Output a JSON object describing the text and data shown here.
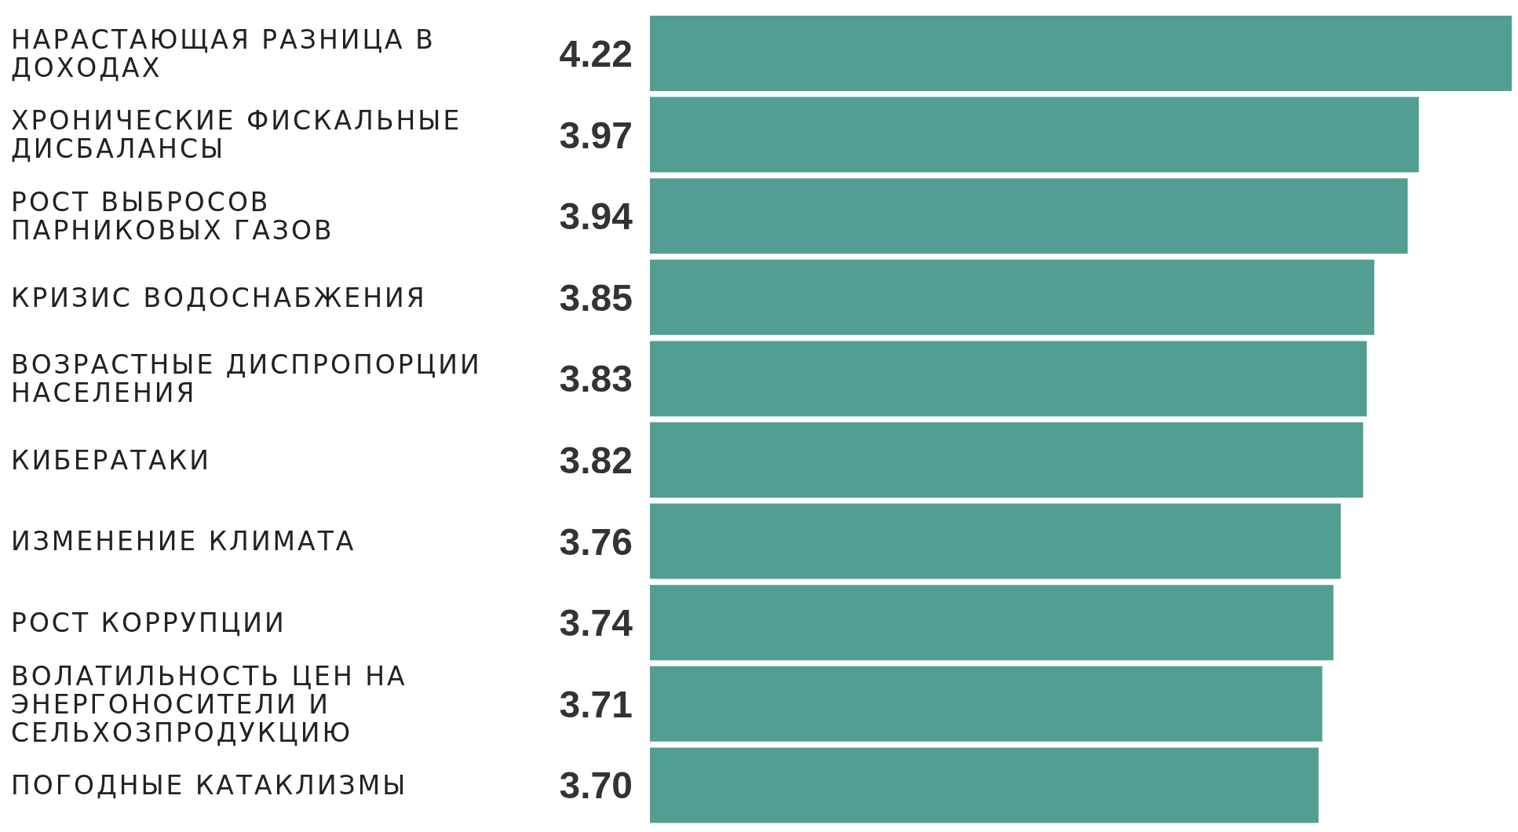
{
  "chart_data": {
    "type": "bar",
    "orientation": "horizontal",
    "categories": [
      "НАРАСТАЮЩАЯ РАЗНИЦА В ДОХОДАХ",
      "ХРОНИЧЕСКИЕ ФИСКАЛЬНЫЕ ДИСБАЛАНСЫ",
      "РОСТ ВЫБРОСОВ ПАРНИКОВЫХ ГАЗОВ",
      "КРИЗИС ВОДОСНАБЖЕНИЯ",
      "ВОЗРАСТНЫЕ ДИСПРОПОРЦИИ НАСЕЛЕНИЯ",
      "КИБЕРАТАКИ",
      "ИЗМЕНЕНИЕ КЛИМАТА",
      "РОСТ КОРРУПЦИИ",
      "ВОЛАТИЛЬНОСТЬ ЦЕН НА ЭНЕРГОНОСИТЕЛИ И СЕЛЬХОЗПРОДУКЦИЮ",
      "ПОГОДНЫЕ КАТАКЛИЗМЫ"
    ],
    "values": [
      4.22,
      3.97,
      3.94,
      3.85,
      3.83,
      3.82,
      3.76,
      3.74,
      3.71,
      3.7
    ],
    "value_labels": [
      "4.22",
      "3.97",
      "3.94",
      "3.85",
      "3.83",
      "3.82",
      "3.76",
      "3.74",
      "3.71",
      "3.70"
    ],
    "color": "#529e92",
    "xlim": [
      1.9,
      4.22
    ],
    "tick_labels": "y"
  }
}
